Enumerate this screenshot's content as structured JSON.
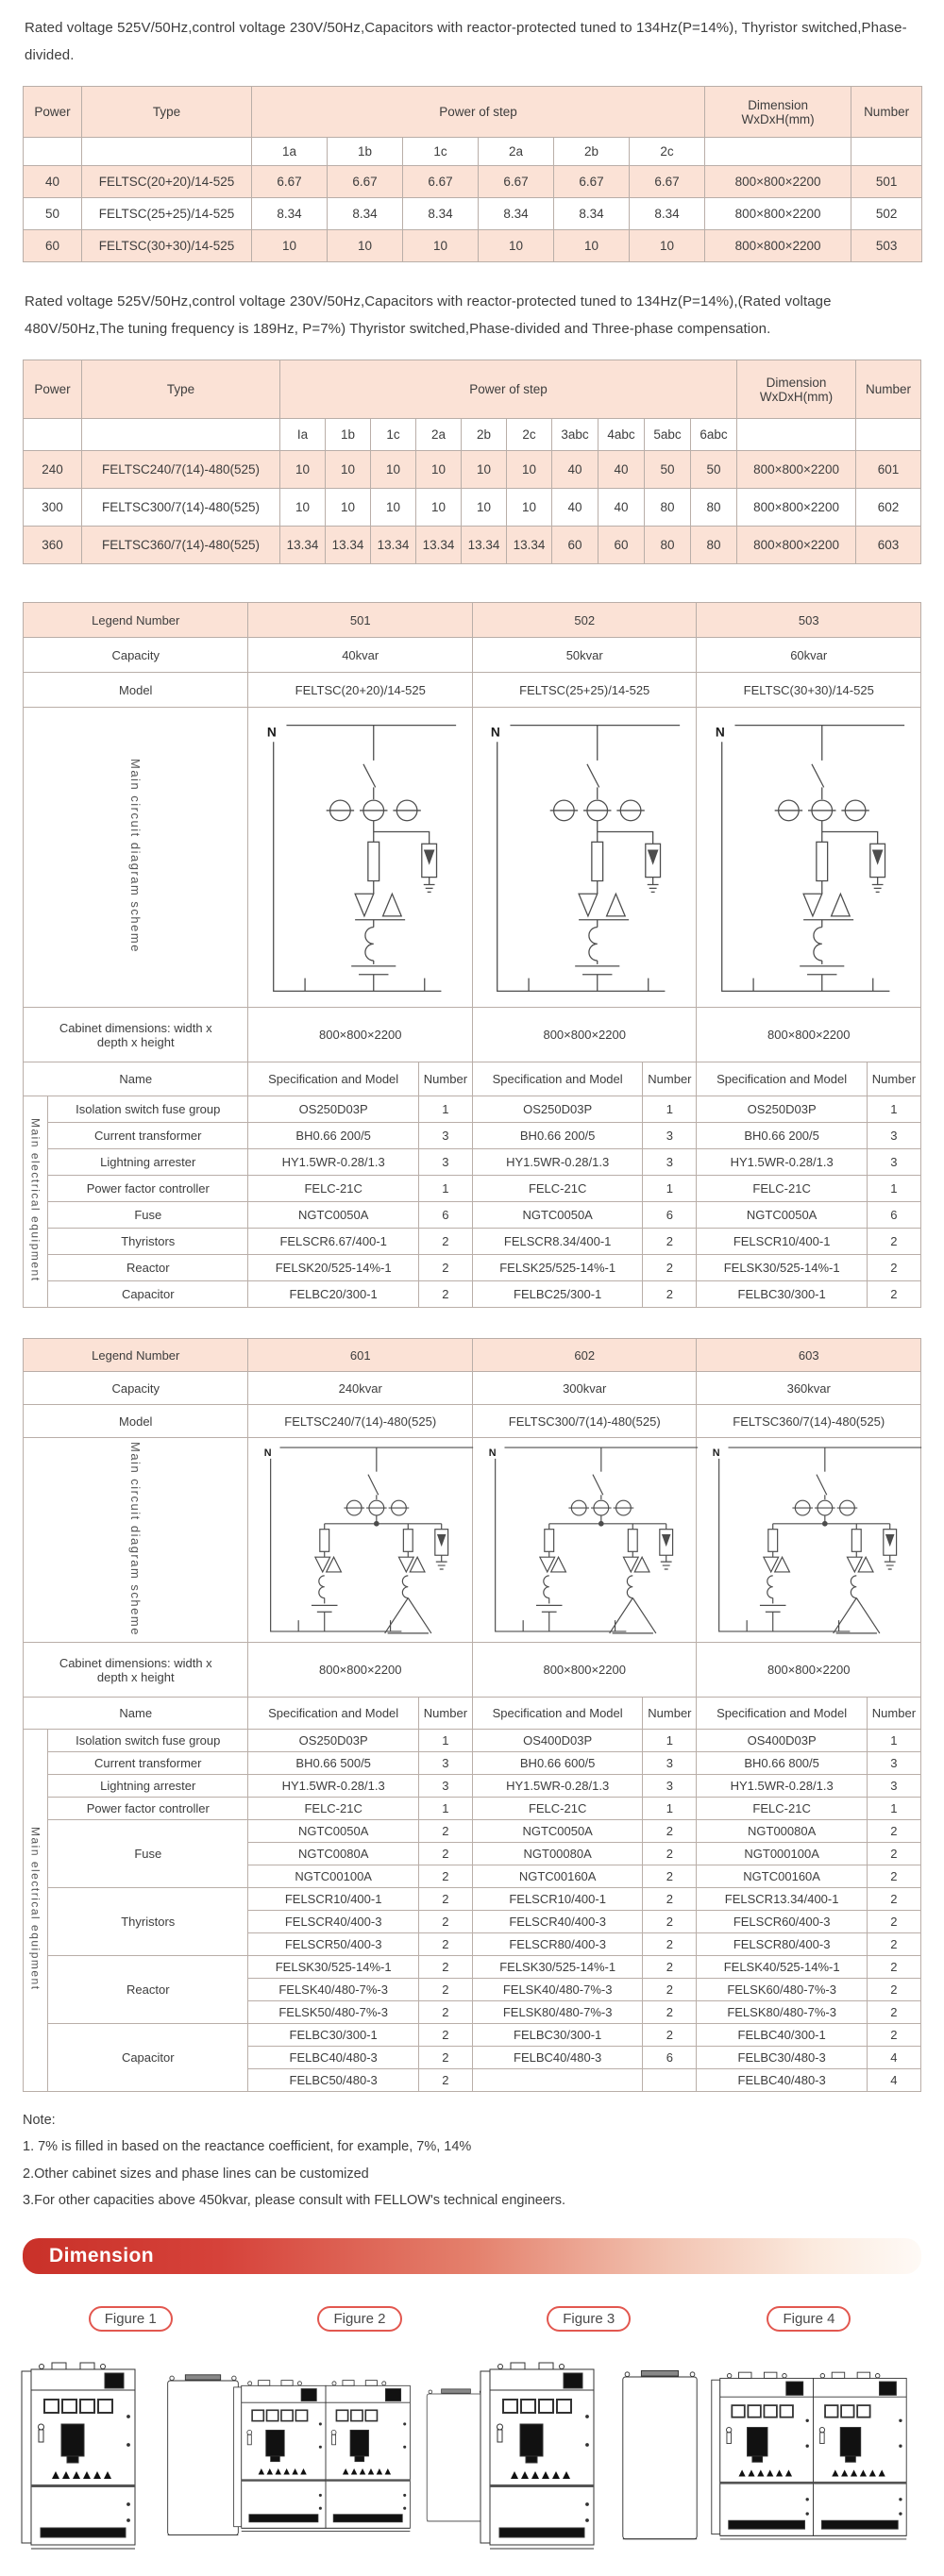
{
  "page": {
    "intro1": "Rated voltage 525V/50Hz,control voltage 230V/50Hz,Capacitors with reactor-protected tuned to 134Hz(P=14%), Thyristor switched,Phase-divided.",
    "intro2": "Rated voltage 525V/50Hz,control voltage 230V/50Hz,Capacitors with reactor-protected tuned to 134Hz(P=14%),(Rated voltage 480V/50Hz,The tuning frequency is 189Hz, P=7%) Thyristor switched,Phase-divided and Three-phase compensation."
  },
  "table1": {
    "headers": {
      "power": "Power",
      "type": "Type",
      "step": "Power of step",
      "dimension": "Dimension WxDxH(mm)",
      "number": "Number"
    },
    "step_cols": [
      "1a",
      "1b",
      "1c",
      "2a",
      "2b",
      "2c"
    ],
    "rows": [
      {
        "power": "40",
        "type": "FELTSC(20+20)/14-525",
        "steps": [
          "6.67",
          "6.67",
          "6.67",
          "6.67",
          "6.67",
          "6.67"
        ],
        "dimension": "800×800×2200",
        "number": "501"
      },
      {
        "power": "50",
        "type": "FELTSC(25+25)/14-525",
        "steps": [
          "8.34",
          "8.34",
          "8.34",
          "8.34",
          "8.34",
          "8.34"
        ],
        "dimension": "800×800×2200",
        "number": "502"
      },
      {
        "power": "60",
        "type": "FELTSC(30+30)/14-525",
        "steps": [
          "10",
          "10",
          "10",
          "10",
          "10",
          "10"
        ],
        "dimension": "800×800×2200",
        "number": "503"
      }
    ]
  },
  "table2": {
    "headers": {
      "power": "Power",
      "type": "Type",
      "step": "Power of step",
      "dimension": "Dimension WxDxH(mm)",
      "number": "Number"
    },
    "step_cols": [
      "Ia",
      "1b",
      "1c",
      "2a",
      "2b",
      "2c",
      "3abc",
      "4abc",
      "5abc",
      "6abc"
    ],
    "rows": [
      {
        "power": "240",
        "type": "FELTSC240/7(14)-480(525)",
        "steps": [
          "10",
          "10",
          "10",
          "10",
          "10",
          "10",
          "40",
          "40",
          "50",
          "50"
        ],
        "dimension": "800×800×2200",
        "number": "601"
      },
      {
        "power": "300",
        "type": "FELTSC300/7(14)-480(525)",
        "steps": [
          "10",
          "10",
          "10",
          "10",
          "10",
          "10",
          "40",
          "40",
          "80",
          "80"
        ],
        "dimension": "800×800×2200",
        "number": "602"
      },
      {
        "power": "360",
        "type": "FELTSC360/7(14)-480(525)",
        "steps": [
          "13.34",
          "13.34",
          "13.34",
          "13.34",
          "13.34",
          "13.34",
          "60",
          "60",
          "80",
          "80"
        ],
        "dimension": "800×800×2200",
        "number": "603"
      }
    ]
  },
  "spec1": {
    "legend_label": "Legend Number",
    "legends": [
      "501",
      "502",
      "503"
    ],
    "capacity_label": "Capacity",
    "capacities": [
      "40kvar",
      "50kvar",
      "60kvar"
    ],
    "model_label": "Model",
    "models": [
      "FELTSC(20+20)/14-525",
      "FELTSC(25+25)/14-525",
      "FELTSC(30+30)/14-525"
    ],
    "diagram_label": "Main circuit diagram scheme",
    "diagram_n_label": "N",
    "cabinet_label": "Cabinet dimensions: width x depth x height",
    "cabinet_dims": [
      "800×800×2200",
      "800×800×2200",
      "800×800×2200"
    ],
    "name_header": "Name",
    "spec_header": "Specification and Model",
    "number_header": "Number",
    "equipment_label": "Main electrical equipment",
    "equipment": [
      {
        "name": "Isolation switch fuse group",
        "subrows": [
          [
            "OS250D03P",
            "1",
            "OS250D03P",
            "1",
            "OS250D03P",
            "1"
          ]
        ]
      },
      {
        "name": "Current transformer",
        "subrows": [
          [
            "BH0.66 200/5",
            "3",
            "BH0.66 200/5",
            "3",
            "BH0.66 200/5",
            "3"
          ]
        ]
      },
      {
        "name": "Lightning arrester",
        "subrows": [
          [
            "HY1.5WR-0.28/1.3",
            "3",
            "HY1.5WR-0.28/1.3",
            "3",
            "HY1.5WR-0.28/1.3",
            "3"
          ]
        ]
      },
      {
        "name": "Power factor controller",
        "subrows": [
          [
            "FELC-21C",
            "1",
            "FELC-21C",
            "1",
            "FELC-21C",
            "1"
          ]
        ]
      },
      {
        "name": "Fuse",
        "subrows": [
          [
            "NGTC0050A",
            "6",
            "NGTC0050A",
            "6",
            "NGTC0050A",
            "6"
          ]
        ]
      },
      {
        "name": "Thyristors",
        "subrows": [
          [
            "FELSCR6.67/400-1",
            "2",
            "FELSCR8.34/400-1",
            "2",
            "FELSCR10/400-1",
            "2"
          ]
        ]
      },
      {
        "name": "Reactor",
        "subrows": [
          [
            "FELSK20/525-14%-1",
            "2",
            "FELSK25/525-14%-1",
            "2",
            "FELSK30/525-14%-1",
            "2"
          ]
        ]
      },
      {
        "name": "Capacitor",
        "subrows": [
          [
            "FELBC20/300-1",
            "2",
            "FELBC25/300-1",
            "2",
            "FELBC30/300-1",
            "2"
          ]
        ]
      }
    ]
  },
  "spec2": {
    "legend_label": "Legend Number",
    "legends": [
      "601",
      "602",
      "603"
    ],
    "capacity_label": "Capacity",
    "capacities": [
      "240kvar",
      "300kvar",
      "360kvar"
    ],
    "model_label": "Model",
    "models": [
      "FELTSC240/7(14)-480(525)",
      "FELTSC300/7(14)-480(525)",
      "FELTSC360/7(14)-480(525)"
    ],
    "diagram_label": "Main circuit diagram scheme",
    "diagram_n_label": "N",
    "cabinet_label": "Cabinet dimensions: width x depth x height",
    "cabinet_dims": [
      "800×800×2200",
      "800×800×2200",
      "800×800×2200"
    ],
    "name_header": "Name",
    "spec_header": "Specification and Model",
    "number_header": "Number",
    "equipment_label": "Main electrical equipment",
    "equipment": [
      {
        "name": "Isolation switch fuse group",
        "subrows": [
          [
            "OS250D03P",
            "1",
            "OS400D03P",
            "1",
            "OS400D03P",
            "1"
          ]
        ]
      },
      {
        "name": "Current transformer",
        "subrows": [
          [
            "BH0.66 500/5",
            "3",
            "BH0.66 600/5",
            "3",
            "BH0.66 800/5",
            "3"
          ]
        ]
      },
      {
        "name": "Lightning arrester",
        "subrows": [
          [
            "HY1.5WR-0.28/1.3",
            "3",
            "HY1.5WR-0.28/1.3",
            "3",
            "HY1.5WR-0.28/1.3",
            "3"
          ]
        ]
      },
      {
        "name": "Power factor controller",
        "subrows": [
          [
            "FELC-21C",
            "1",
            "FELC-21C",
            "1",
            "FELC-21C",
            "1"
          ]
        ]
      },
      {
        "name": "Fuse",
        "subrows": [
          [
            "NGTC0050A",
            "2",
            "NGTC0050A",
            "2",
            "NGT00080A",
            "2"
          ],
          [
            "NGTC0080A",
            "2",
            "NGT00080A",
            "2",
            "NGT000100A",
            "2"
          ],
          [
            "NGTC00100A",
            "2",
            "NGTC00160A",
            "2",
            "NGTC00160A",
            "2"
          ]
        ]
      },
      {
        "name": "Thyristors",
        "subrows": [
          [
            "FELSCR10/400-1",
            "2",
            "FELSCR10/400-1",
            "2",
            "FELSCR13.34/400-1",
            "2"
          ],
          [
            "FELSCR40/400-3",
            "2",
            "FELSCR40/400-3",
            "2",
            "FELSCR60/400-3",
            "2"
          ],
          [
            "FELSCR50/400-3",
            "2",
            "FELSCR80/400-3",
            "2",
            "FELSCR80/400-3",
            "2"
          ]
        ]
      },
      {
        "name": "Reactor",
        "subrows": [
          [
            "FELSK30/525-14%-1",
            "2",
            "FELSK30/525-14%-1",
            "2",
            "FELSK40/525-14%-1",
            "2"
          ],
          [
            "FELSK40/480-7%-3",
            "2",
            "FELSK40/480-7%-3",
            "2",
            "FELSK60/480-7%-3",
            "2"
          ],
          [
            "FELSK50/480-7%-3",
            "2",
            "FELSK80/480-7%-3",
            "2",
            "FELSK80/480-7%-3",
            "2"
          ]
        ]
      },
      {
        "name": "Capacitor",
        "subrows": [
          [
            "FELBC30/300-1",
            "2",
            "FELBC30/300-1",
            "2",
            "FELBC40/300-1",
            "2"
          ],
          [
            "FELBC40/480-3",
            "2",
            "FELBC40/480-3",
            "6",
            "FELBC30/480-3",
            "4"
          ],
          [
            "FELBC50/480-3",
            "2",
            "",
            "",
            "FELBC40/480-3",
            "4"
          ]
        ]
      }
    ]
  },
  "note": {
    "title": "Note:",
    "lines": [
      "1. 7% is filled in based on the reactance coefficient, for example, 7%, 14%",
      "2.Other cabinet sizes and phase lines can be customized",
      "3.For other capacities above 450kvar, please consult with FELLOW's technical engineers."
    ]
  },
  "banner_title": "Dimension",
  "figures": [
    "Figure 1",
    "Figure 2",
    "Figure 3",
    "Figure 4"
  ],
  "colors": {
    "accent_red": "#c93129",
    "table_pink": "#fbe2d6",
    "border": "#b9aea8"
  }
}
